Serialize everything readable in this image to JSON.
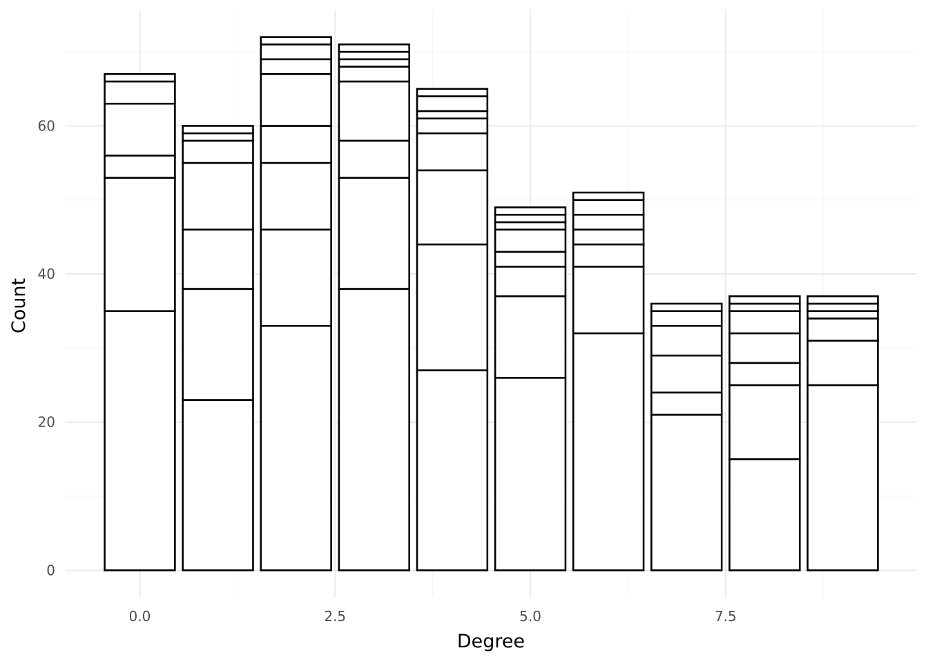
{
  "chart_data": {
    "type": "bar",
    "stacked": true,
    "title": "",
    "xlabel": "Degree",
    "ylabel": "Count",
    "x": [
      0,
      1,
      2,
      3,
      4,
      5,
      6,
      7,
      8,
      9
    ],
    "x_ticks": [
      0,
      2.5,
      5,
      7.5
    ],
    "x_tick_labels": [
      "0.0",
      "2.5",
      "5.0",
      "7.5"
    ],
    "xlim": [
      -0.95,
      9.95
    ],
    "y_ticks": [
      0,
      20,
      40,
      60
    ],
    "y_tick_labels": [
      "0",
      "20",
      "40",
      "60"
    ],
    "ylim": [
      -3.6,
      75.6
    ],
    "bar_width": 0.9,
    "segments": [
      [
        35,
        18,
        3,
        7,
        3,
        1
      ],
      [
        23,
        15,
        8,
        9,
        3,
        1,
        1
      ],
      [
        33,
        13,
        9,
        5,
        7,
        2,
        2,
        1
      ],
      [
        38,
        15,
        5,
        8,
        2,
        1,
        1,
        1
      ],
      [
        27,
        17,
        10,
        5,
        2,
        1,
        2,
        1
      ],
      [
        26,
        11,
        4,
        2,
        3,
        1,
        1,
        1
      ],
      [
        32,
        9,
        3,
        2,
        2,
        2,
        1
      ],
      [
        21,
        3,
        5,
        4,
        2,
        1
      ],
      [
        15,
        10,
        3,
        4,
        3,
        1,
        1
      ],
      [
        25,
        6,
        3,
        1,
        1,
        1
      ]
    ],
    "totals": [
      67,
      60,
      72,
      71,
      65,
      49,
      51,
      36,
      37,
      37
    ],
    "grid": true,
    "legend": "none",
    "colors": {
      "bar_fill": "#ffffff",
      "bar_stroke": "#000000",
      "grid_major": "#ebebeb",
      "grid_minor": "#f5f5f5",
      "tick_text": "#4d4d4d",
      "title_text": "#000000"
    }
  }
}
